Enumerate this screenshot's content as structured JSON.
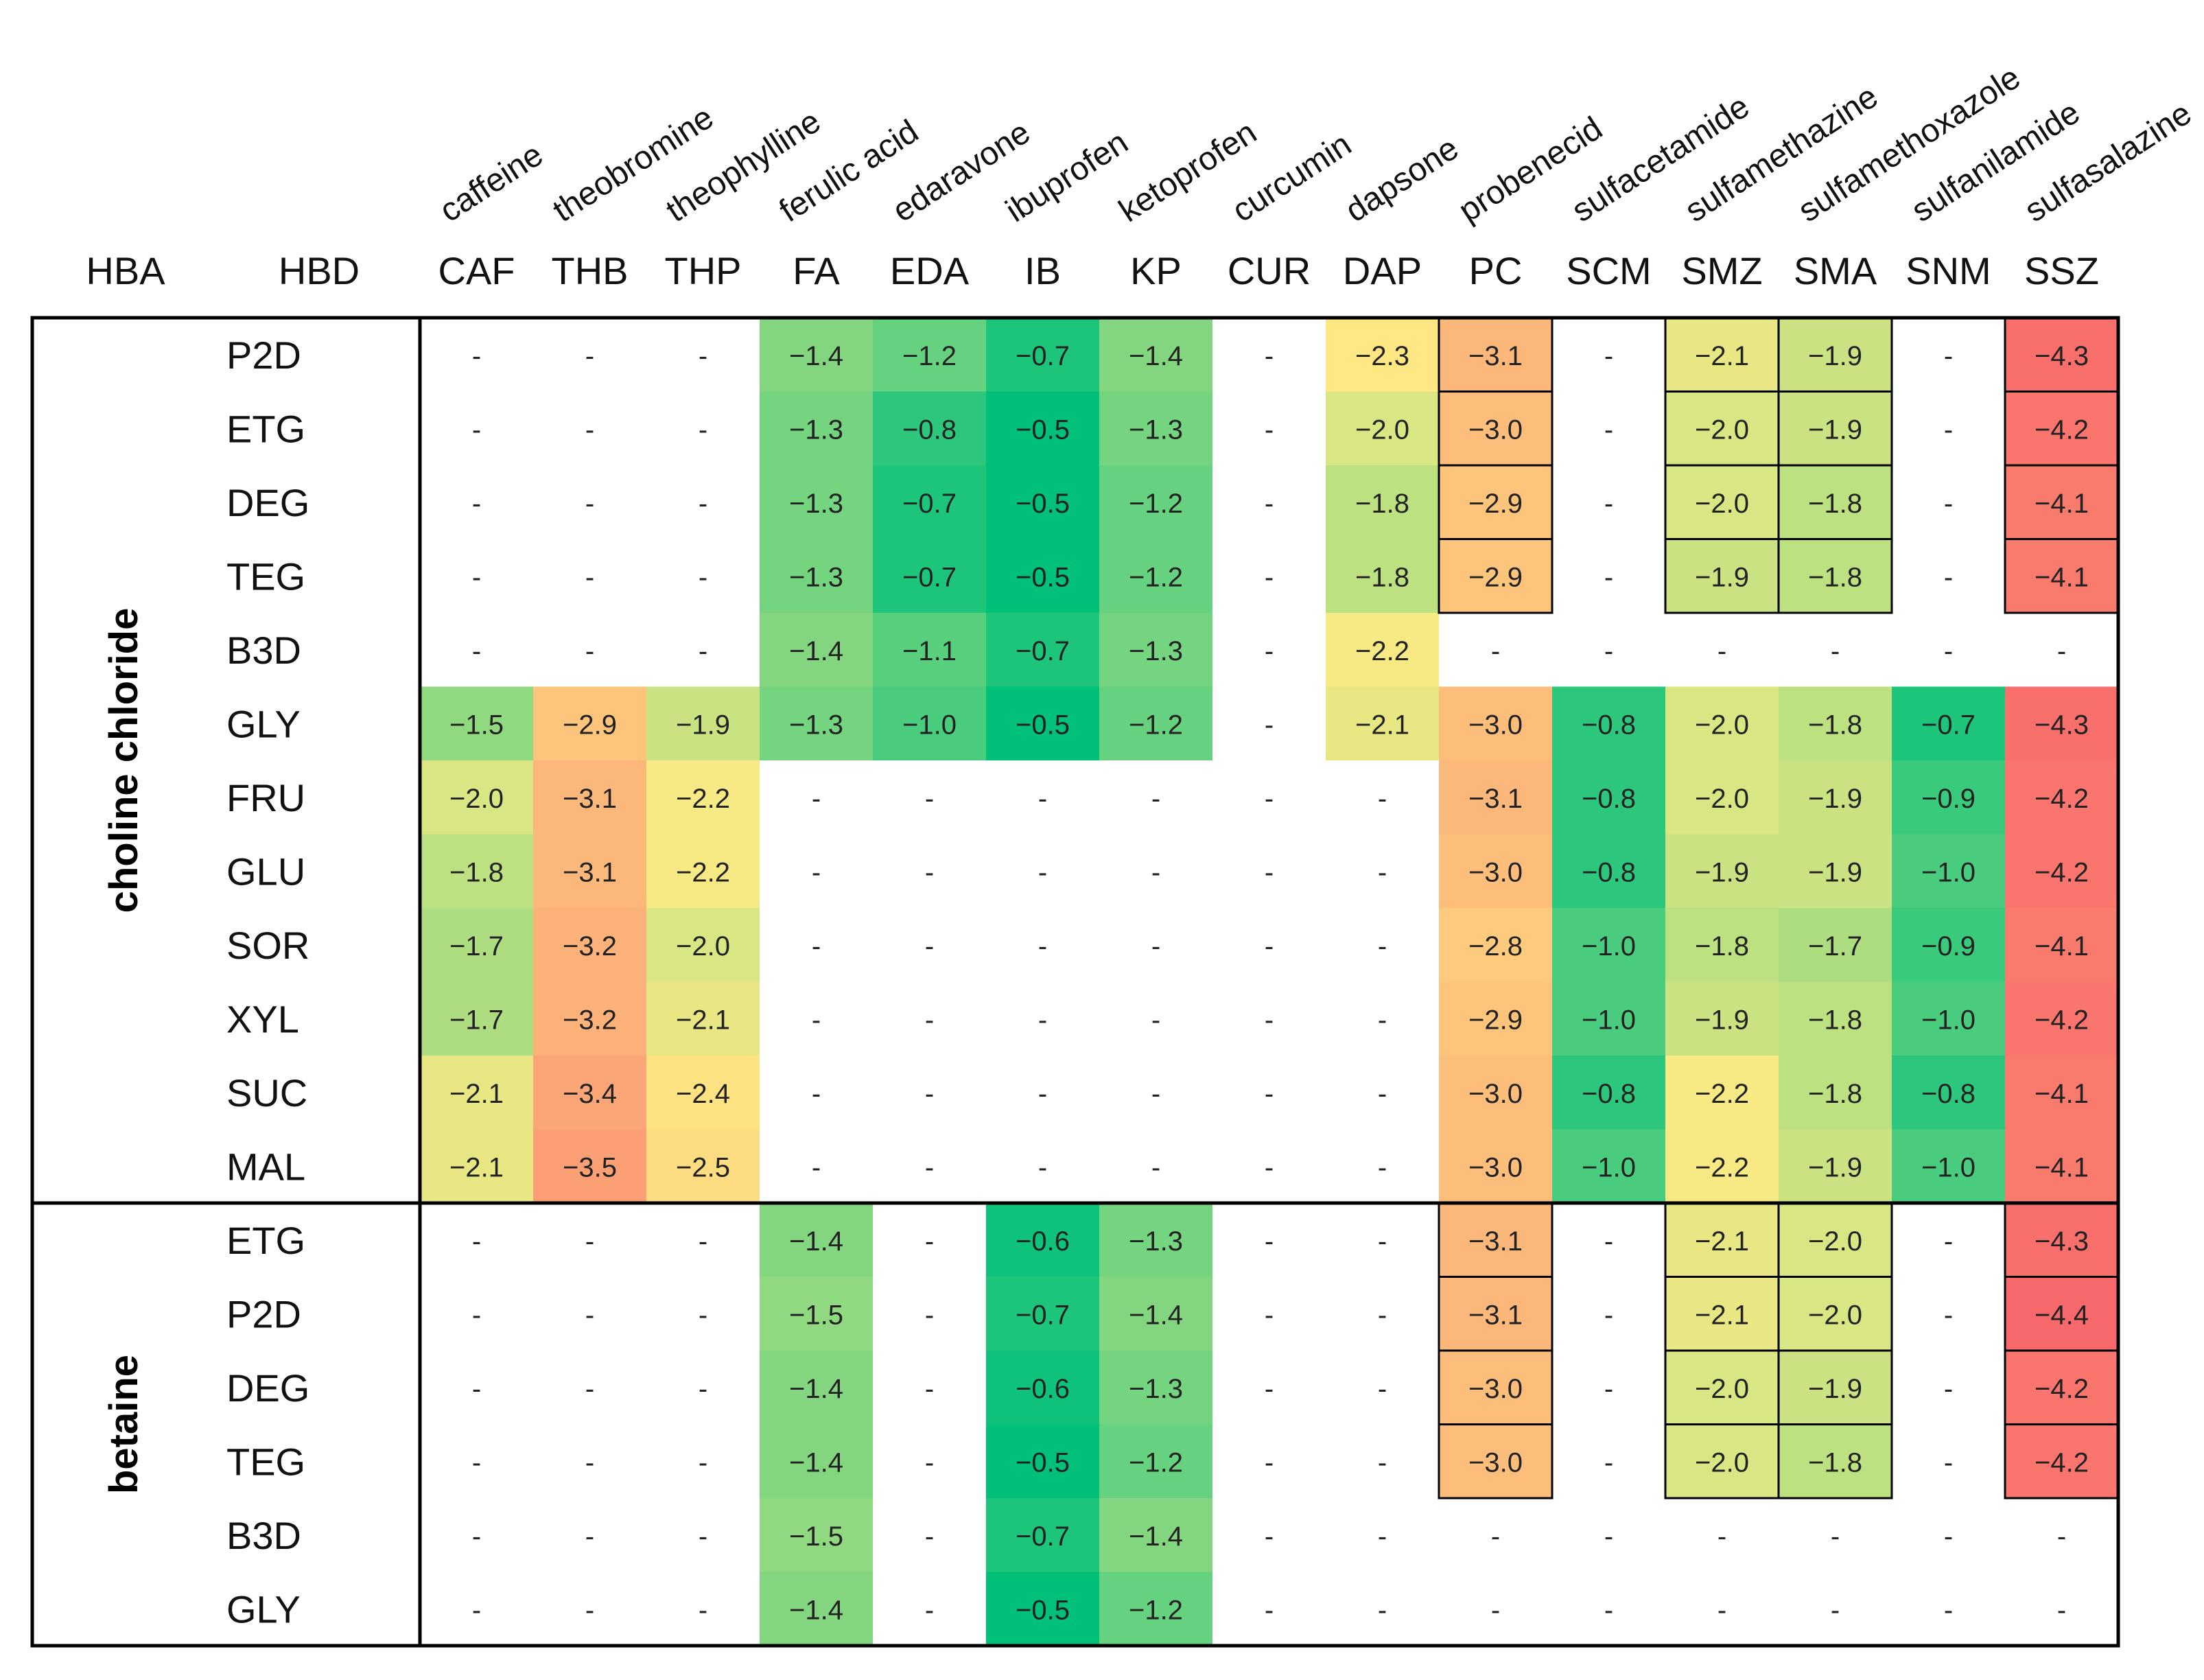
{
  "chart_data": {
    "type": "heatmap",
    "corner_labels": {
      "hba": "HBA",
      "hbd": "HBD"
    },
    "columns": [
      {
        "abbr": "CAF",
        "name": "caffeine"
      },
      {
        "abbr": "THB",
        "name": "theobromine"
      },
      {
        "abbr": "THP",
        "name": "theophylline"
      },
      {
        "abbr": "FA",
        "name": "ferulic acid"
      },
      {
        "abbr": "EDA",
        "name": "edaravone"
      },
      {
        "abbr": "IB",
        "name": "ibuprofen"
      },
      {
        "abbr": "KP",
        "name": "ketoprofen"
      },
      {
        "abbr": "CUR",
        "name": "curcumin"
      },
      {
        "abbr": "DAP",
        "name": "dapsone"
      },
      {
        "abbr": "PC",
        "name": "probenecid"
      },
      {
        "abbr": "SCM",
        "name": "sulfacetamide"
      },
      {
        "abbr": "SMZ",
        "name": "sulfamethazine"
      },
      {
        "abbr": "SMA",
        "name": "sulfamethoxazole"
      },
      {
        "abbr": "SNM",
        "name": "sulfanilamide"
      },
      {
        "abbr": "SSZ",
        "name": "sulfasalazine"
      }
    ],
    "groups": [
      {
        "hba": "choline chloride",
        "rows": [
          {
            "hbd": "P2D",
            "values": [
              null,
              null,
              null,
              -1.4,
              -1.2,
              -0.7,
              -1.4,
              null,
              -2.3,
              -3.1,
              null,
              -2.1,
              -1.9,
              null,
              -4.3
            ],
            "boxed": [
              9,
              11,
              12,
              14
            ]
          },
          {
            "hbd": "ETG",
            "values": [
              null,
              null,
              null,
              -1.3,
              -0.8,
              -0.5,
              -1.3,
              null,
              -2.0,
              -3.0,
              null,
              -2.0,
              -1.9,
              null,
              -4.2
            ],
            "boxed": [
              9,
              11,
              12,
              14
            ]
          },
          {
            "hbd": "DEG",
            "values": [
              null,
              null,
              null,
              -1.3,
              -0.7,
              -0.5,
              -1.2,
              null,
              -1.8,
              -2.9,
              null,
              -2.0,
              -1.8,
              null,
              -4.1
            ],
            "boxed": [
              9,
              11,
              12,
              14
            ]
          },
          {
            "hbd": "TEG",
            "values": [
              null,
              null,
              null,
              -1.3,
              -0.7,
              -0.5,
              -1.2,
              null,
              -1.8,
              -2.9,
              null,
              -1.9,
              -1.8,
              null,
              -4.1
            ],
            "boxed": [
              9,
              11,
              12,
              14
            ]
          },
          {
            "hbd": "B3D",
            "values": [
              null,
              null,
              null,
              -1.4,
              -1.1,
              -0.7,
              -1.3,
              null,
              -2.2,
              null,
              null,
              null,
              null,
              null,
              null
            ],
            "boxed": []
          },
          {
            "hbd": "GLY",
            "values": [
              -1.5,
              -2.9,
              -1.9,
              -1.3,
              -1.0,
              -0.5,
              -1.2,
              null,
              -2.1,
              -3.0,
              -0.8,
              -2.0,
              -1.8,
              -0.7,
              -4.3
            ],
            "boxed": []
          },
          {
            "hbd": "FRU",
            "values": [
              -2.0,
              -3.1,
              -2.2,
              null,
              null,
              null,
              null,
              null,
              null,
              -3.1,
              -0.8,
              -2.0,
              -1.9,
              -0.9,
              -4.2
            ],
            "boxed": []
          },
          {
            "hbd": "GLU",
            "values": [
              -1.8,
              -3.1,
              -2.2,
              null,
              null,
              null,
              null,
              null,
              null,
              -3.0,
              -0.8,
              -1.9,
              -1.9,
              -1.0,
              -4.2
            ],
            "boxed": []
          },
          {
            "hbd": "SOR",
            "values": [
              -1.7,
              -3.2,
              -2.0,
              null,
              null,
              null,
              null,
              null,
              null,
              -2.8,
              -1.0,
              -1.8,
              -1.7,
              -0.9,
              -4.1
            ],
            "boxed": []
          },
          {
            "hbd": "XYL",
            "values": [
              -1.7,
              -3.2,
              -2.1,
              null,
              null,
              null,
              null,
              null,
              null,
              -2.9,
              -1.0,
              -1.9,
              -1.8,
              -1.0,
              -4.2
            ],
            "boxed": []
          },
          {
            "hbd": "SUC",
            "values": [
              -2.1,
              -3.4,
              -2.4,
              null,
              null,
              null,
              null,
              null,
              null,
              -3.0,
              -0.8,
              -2.2,
              -1.8,
              -0.8,
              -4.1
            ],
            "boxed": []
          },
          {
            "hbd": "MAL",
            "values": [
              -2.1,
              -3.5,
              -2.5,
              null,
              null,
              null,
              null,
              null,
              null,
              -3.0,
              -1.0,
              -2.2,
              -1.9,
              -1.0,
              -4.1
            ],
            "boxed": []
          }
        ]
      },
      {
        "hba": "betaine",
        "rows": [
          {
            "hbd": "ETG",
            "values": [
              null,
              null,
              null,
              -1.4,
              null,
              -0.6,
              -1.3,
              null,
              null,
              -3.1,
              null,
              -2.1,
              -2.0,
              null,
              -4.3
            ],
            "boxed": [
              9,
              11,
              12,
              14
            ]
          },
          {
            "hbd": "P2D",
            "values": [
              null,
              null,
              null,
              -1.5,
              null,
              -0.7,
              -1.4,
              null,
              null,
              -3.1,
              null,
              -2.1,
              -2.0,
              null,
              -4.4
            ],
            "boxed": [
              9,
              11,
              12,
              14
            ]
          },
          {
            "hbd": "DEG",
            "values": [
              null,
              null,
              null,
              -1.4,
              null,
              -0.6,
              -1.3,
              null,
              null,
              -3.0,
              null,
              -2.0,
              -1.9,
              null,
              -4.2
            ],
            "boxed": [
              9,
              11,
              12,
              14
            ]
          },
          {
            "hbd": "TEG",
            "values": [
              null,
              null,
              null,
              -1.4,
              null,
              -0.5,
              -1.2,
              null,
              null,
              -3.0,
              null,
              -2.0,
              -1.8,
              null,
              -4.2
            ],
            "boxed": [
              9,
              11,
              12,
              14
            ]
          },
          {
            "hbd": "B3D",
            "values": [
              null,
              null,
              null,
              -1.5,
              null,
              -0.7,
              -1.4,
              null,
              null,
              null,
              null,
              null,
              null,
              null,
              null
            ],
            "boxed": []
          },
          {
            "hbd": "GLY",
            "values": [
              null,
              null,
              null,
              -1.4,
              null,
              -0.5,
              -1.2,
              null,
              null,
              null,
              null,
              null,
              null,
              null,
              null
            ],
            "boxed": []
          }
        ]
      }
    ],
    "missing_symbol": "-",
    "color_scale": {
      "min": -4.4,
      "max": -0.5,
      "low_color": "#f8696b",
      "mid_color": "#ffeb84",
      "high_color": "#00c07a"
    }
  }
}
